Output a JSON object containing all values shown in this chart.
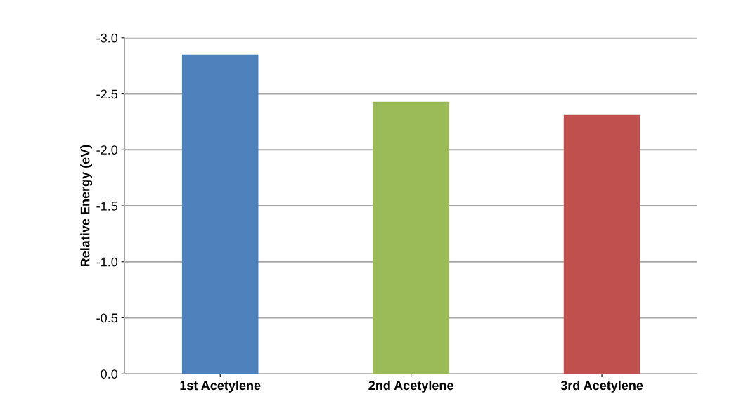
{
  "chart_data": {
    "type": "bar",
    "ylabel": "Relative Energy (eV)",
    "categories": [
      "1st Acetylene",
      "2nd Acetylene",
      "3rd Acetylene"
    ],
    "values": [
      -2.85,
      -2.43,
      -2.31
    ],
    "colors": [
      "#4f81bd",
      "#9bbb59",
      "#c0504d"
    ],
    "ylim": [
      0,
      -3
    ],
    "yticks": [
      {
        "value": 0,
        "label": "0.0"
      },
      {
        "value": -0.5,
        "label": "-0.5"
      },
      {
        "value": -1,
        "label": "-1.0"
      },
      {
        "value": -1.5,
        "label": "-1.5"
      },
      {
        "value": -2,
        "label": "-2.0"
      },
      {
        "value": -2.5,
        "label": "-2.5"
      },
      {
        "value": -3,
        "label": "-3.0"
      }
    ],
    "grid": "y"
  }
}
